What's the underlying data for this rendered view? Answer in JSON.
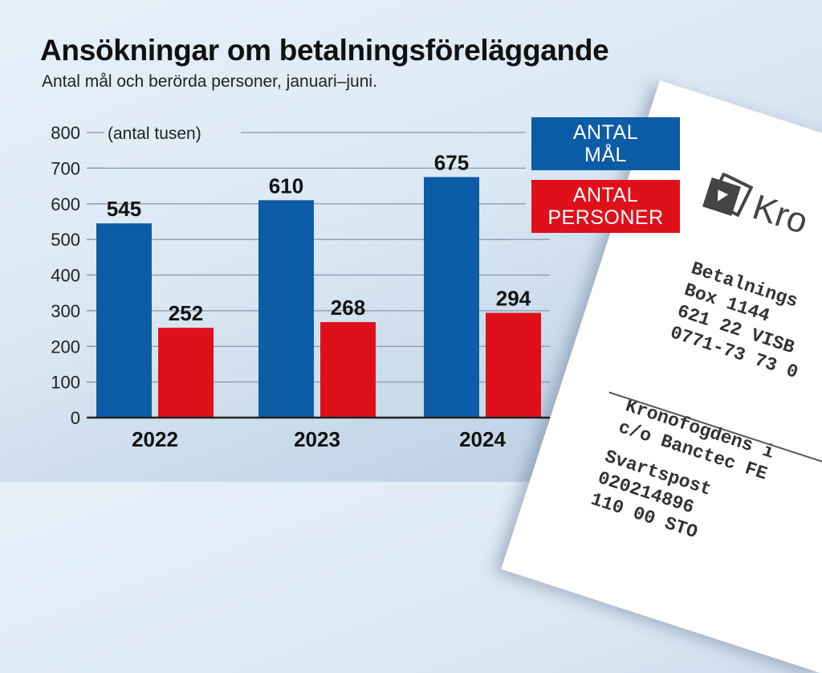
{
  "title": "Ansökningar om betalningsföreläggande",
  "subtitle": "Antal mål och berörda personer, januari–juni.",
  "chart_data": {
    "type": "bar",
    "title": "Ansökningar om betalningsföreläggande",
    "subtitle": "Antal mål och berörda personer, januari–juni.",
    "unit_label": "(antal tusen)",
    "categories": [
      "2022",
      "2023",
      "2024"
    ],
    "series": [
      {
        "name": "ANTAL MÅL",
        "color": "#0d5ca6",
        "values": [
          545,
          610,
          675
        ]
      },
      {
        "name": "ANTAL PERSONER",
        "color": "#e0101b",
        "values": [
          252,
          268,
          294
        ]
      }
    ],
    "yticks": [
      "0",
      "100",
      "200",
      "300",
      "400",
      "500",
      "600",
      "700",
      "800"
    ],
    "ylim": [
      0,
      800
    ],
    "grid": true,
    "legend_position": "top-right"
  },
  "legend": {
    "blue_line1": "ANTAL",
    "blue_line2": "MÅL",
    "red_line1": "ANTAL",
    "red_line2": "PERSONER"
  },
  "paper": {
    "brand": "Kro",
    "address": [
      "Betalnings",
      "Box 1144",
      "621 22 VISB",
      "0771-73 73 0"
    ],
    "recipient": [
      "Kronofogdens i",
      "c/o Banctec FE"
    ],
    "postal": [
      "Svartspost",
      "020214896",
      "110 00 STO"
    ]
  }
}
